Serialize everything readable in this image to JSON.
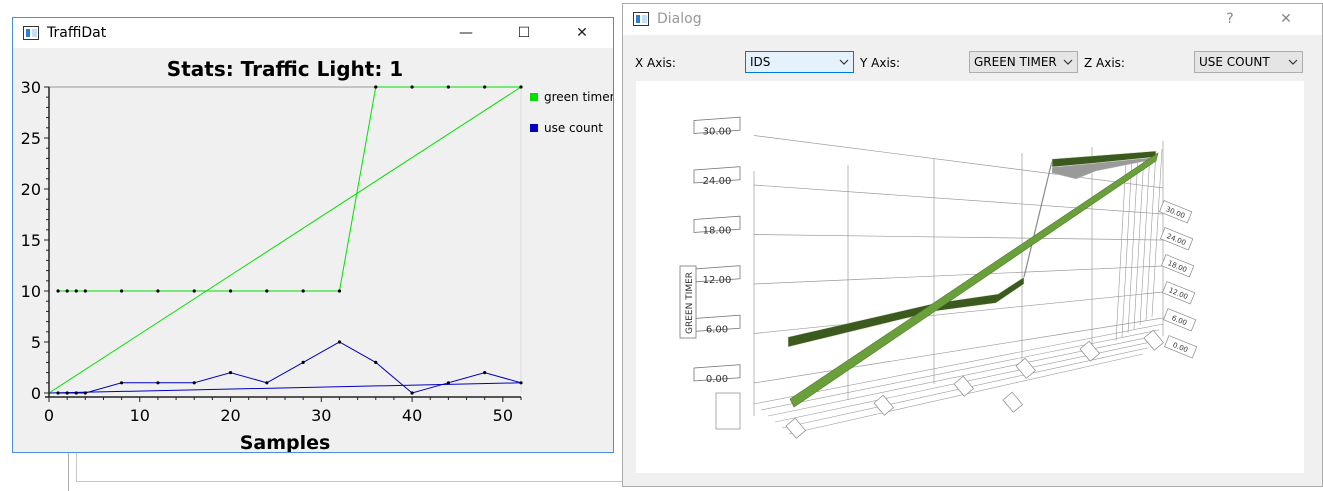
{
  "traffi_window": {
    "title": "TraffiDat",
    "minimize_glyph": "—",
    "maximize_glyph": "☐",
    "close_glyph": "✕"
  },
  "dialog_window": {
    "title": "Dialog",
    "help_glyph": "?",
    "close_glyph": "✕",
    "x_axis_label": "X Axis:",
    "x_axis_value": "IDS",
    "y_axis_label": "Y Axis:",
    "y_axis_value": "GREEN TIMER",
    "z_axis_label": "Z Axis:",
    "z_axis_value": "USE COUNT"
  },
  "chart_data": [
    {
      "type": "line",
      "title": "Stats: Traffic Light: 1",
      "xlabel": "Samples",
      "ylabel": "",
      "xlim": [
        0,
        52
      ],
      "ylim": [
        0,
        30
      ],
      "xticks": [
        "0",
        "10",
        "20",
        "30",
        "40",
        "50"
      ],
      "yticks": [
        "0",
        "5",
        "10",
        "15",
        "20",
        "25",
        "30"
      ],
      "legend_position": "right",
      "grid": false,
      "series": [
        {
          "name": "green timer",
          "color": "#00e000",
          "x": [
            1,
            2,
            3,
            4,
            8,
            12,
            16,
            20,
            24,
            28,
            32,
            36,
            40,
            44,
            48,
            52
          ],
          "y": [
            10,
            10,
            10,
            10,
            10,
            10,
            10,
            10,
            10,
            10,
            10,
            30,
            30,
            30,
            30,
            30
          ]
        },
        {
          "name": "use count",
          "color": "#0000c0",
          "x": [
            1,
            2,
            3,
            4,
            8,
            12,
            16,
            20,
            24,
            28,
            32,
            36,
            40,
            44,
            48,
            52
          ],
          "y": [
            0,
            0,
            0,
            0,
            1,
            1,
            1,
            2,
            1,
            3,
            5,
            3,
            0,
            1,
            2,
            1
          ]
        }
      ],
      "trend_lines": [
        {
          "color": "#00e000",
          "x": [
            0,
            52
          ],
          "y": [
            0,
            30
          ]
        },
        {
          "color": "#0000c0",
          "x": [
            0,
            52
          ],
          "y": [
            0,
            1
          ]
        }
      ]
    },
    {
      "type": "surface3d",
      "title": "",
      "ylabel": "GREEN TIMER",
      "xlabel": "",
      "zlabel": "",
      "y_ticks": [
        "0.00",
        "6.00",
        "12.00",
        "18.00",
        "24.00",
        "30.00"
      ],
      "right_ticks": [
        "0.00",
        "6.00",
        "12.00",
        "18.00",
        "24.00",
        "30.00"
      ],
      "ribbon_color": "#3c5a1e",
      "trend_color": "#6aa03c"
    }
  ]
}
